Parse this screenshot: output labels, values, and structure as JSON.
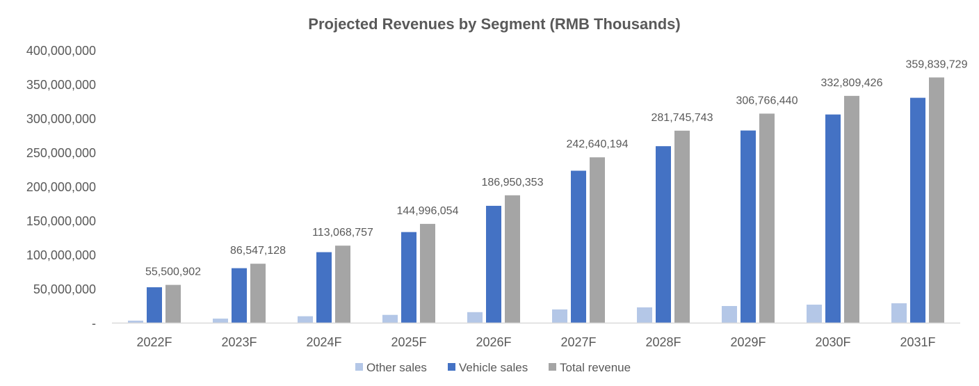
{
  "chart_data": {
    "type": "bar",
    "title": "Projected Revenues by Segment (RMB Thousands)",
    "categories": [
      "2022F",
      "2023F",
      "2024F",
      "2025F",
      "2026F",
      "2027F",
      "2028F",
      "2029F",
      "2030F",
      "2031F"
    ],
    "series": [
      {
        "name": "Other sales",
        "color": "#B4C7E7",
        "values": [
          3000000,
          6000000,
          9500000,
          11500000,
          15500000,
          19500000,
          22500000,
          24500000,
          26500000,
          28500000
        ]
      },
      {
        "name": "Vehicle sales",
        "color": "#4472C4",
        "values": [
          52000000,
          80000000,
          103500000,
          133000000,
          171500000,
          223000000,
          259000000,
          282000000,
          305500000,
          330000000
        ]
      },
      {
        "name": "Total revenue",
        "color": "#A5A5A5",
        "values": [
          55500902,
          86547128,
          113068757,
          144996054,
          186950353,
          242640194,
          281745743,
          306766440,
          332809426,
          359839729
        ]
      }
    ],
    "data_labels": [
      "55,500,902",
      "86,547,128",
      "113,068,757",
      "144,996,054",
      "186,950,353",
      "242,640,194",
      "281,745,743",
      "306,766,440",
      "332,809,426",
      "359,839,729"
    ],
    "ylim": [
      0,
      400000000
    ],
    "yticks": [
      0,
      50000000,
      100000000,
      150000000,
      200000000,
      250000000,
      300000000,
      350000000,
      400000000
    ],
    "ytick_labels": [
      "-",
      "50,000,000",
      "100,000,000",
      "150,000,000",
      "200,000,000",
      "250,000,000",
      "300,000,000",
      "350,000,000",
      "400,000,000"
    ],
    "grid": false,
    "legend": "bottom"
  }
}
